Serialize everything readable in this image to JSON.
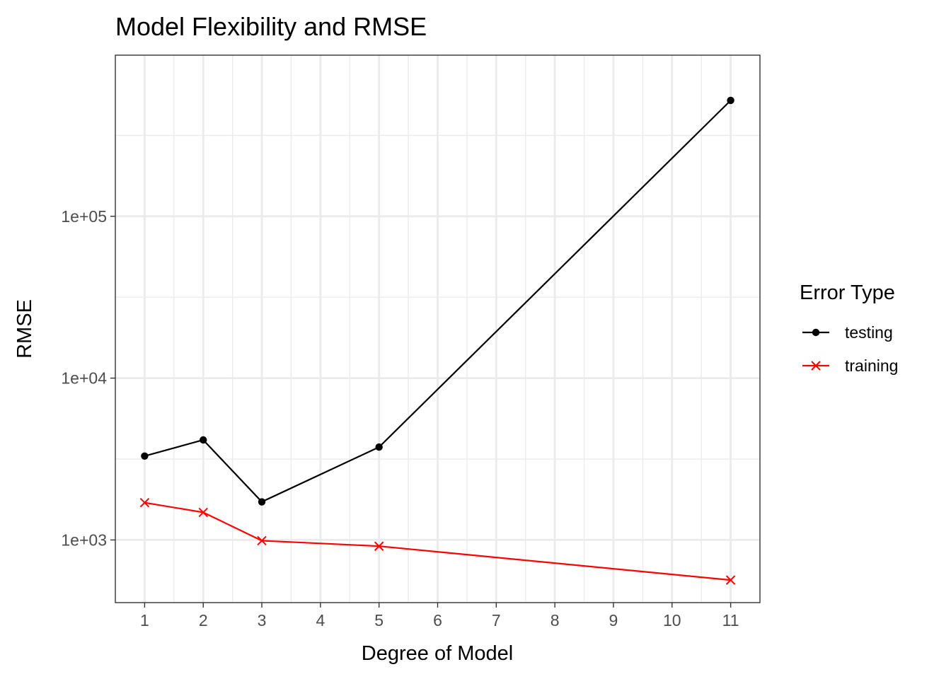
{
  "chart_data": {
    "type": "line",
    "title": "Model Flexibility and RMSE",
    "xlabel": "Degree of Model",
    "ylabel": "RMSE",
    "x_ticks": [
      1,
      2,
      3,
      4,
      5,
      6,
      7,
      8,
      9,
      10,
      11
    ],
    "x_tick_labels": [
      "1",
      "2",
      "3",
      "4",
      "5",
      "6",
      "7",
      "8",
      "9",
      "10",
      "11"
    ],
    "xlim": [
      0.5,
      11.5
    ],
    "y_scale": "log10",
    "y_ticks": [
      1000,
      10000,
      100000
    ],
    "y_tick_labels": [
      "1e+03",
      "1e+04",
      "1e+05"
    ],
    "y_minor_ticks": [
      3162,
      31623,
      316228
    ],
    "ylim": [
      410,
      990000
    ],
    "grid": true,
    "legend": {
      "title": "Error Type",
      "position": "right"
    },
    "x": [
      1,
      2,
      3,
      5,
      11
    ],
    "series": [
      {
        "name": "testing",
        "color": "#000000",
        "marker": "circle",
        "values": [
          3300,
          4150,
          1720,
          3750,
          520000
        ]
      },
      {
        "name": "training",
        "color": "#ff0000",
        "marker": "x",
        "values": [
          1700,
          1480,
          990,
          915,
          565
        ]
      }
    ]
  }
}
